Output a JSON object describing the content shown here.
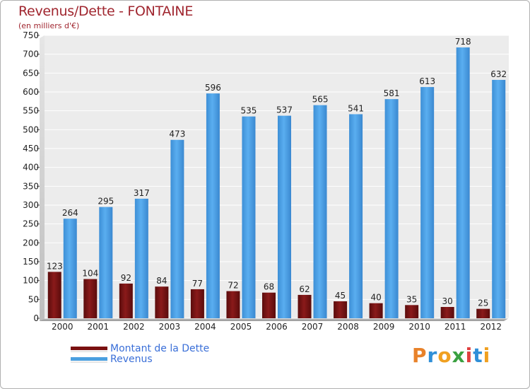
{
  "chart_data": {
    "type": "bar",
    "title": "Revenus/Dette - FONTAINE",
    "subtitle": "(en milliers d'€)",
    "xlabel": "",
    "ylabel": "",
    "ylim": [
      0,
      750
    ],
    "y_ticks": [
      0,
      50,
      100,
      150,
      200,
      250,
      300,
      350,
      400,
      450,
      500,
      550,
      600,
      650,
      700,
      750
    ],
    "grid": true,
    "legend_position": "bottom-left",
    "categories": [
      "2000",
      "2001",
      "2002",
      "2003",
      "2004",
      "2005",
      "2006",
      "2007",
      "2008",
      "2009",
      "2010",
      "2011",
      "2012"
    ],
    "series": [
      {
        "name": "Montant de la Dette",
        "color": "#7a1010",
        "values": [
          123,
          104,
          92,
          84,
          77,
          72,
          68,
          62,
          45,
          40,
          35,
          30,
          25
        ]
      },
      {
        "name": "Revenus",
        "color": "#4a9fe0",
        "values": [
          264,
          295,
          317,
          473,
          596,
          535,
          537,
          565,
          541,
          581,
          613,
          718,
          632
        ]
      }
    ]
  },
  "logo": {
    "text": "Proxiti",
    "letters": [
      "P",
      "r",
      "o",
      "x",
      "i",
      "t",
      "i"
    ],
    "colors": [
      "#e8822a",
      "#2f8fd8",
      "#f0a020",
      "#3aa040",
      "#e04040",
      "#2f8fd8",
      "#f0a020"
    ]
  }
}
